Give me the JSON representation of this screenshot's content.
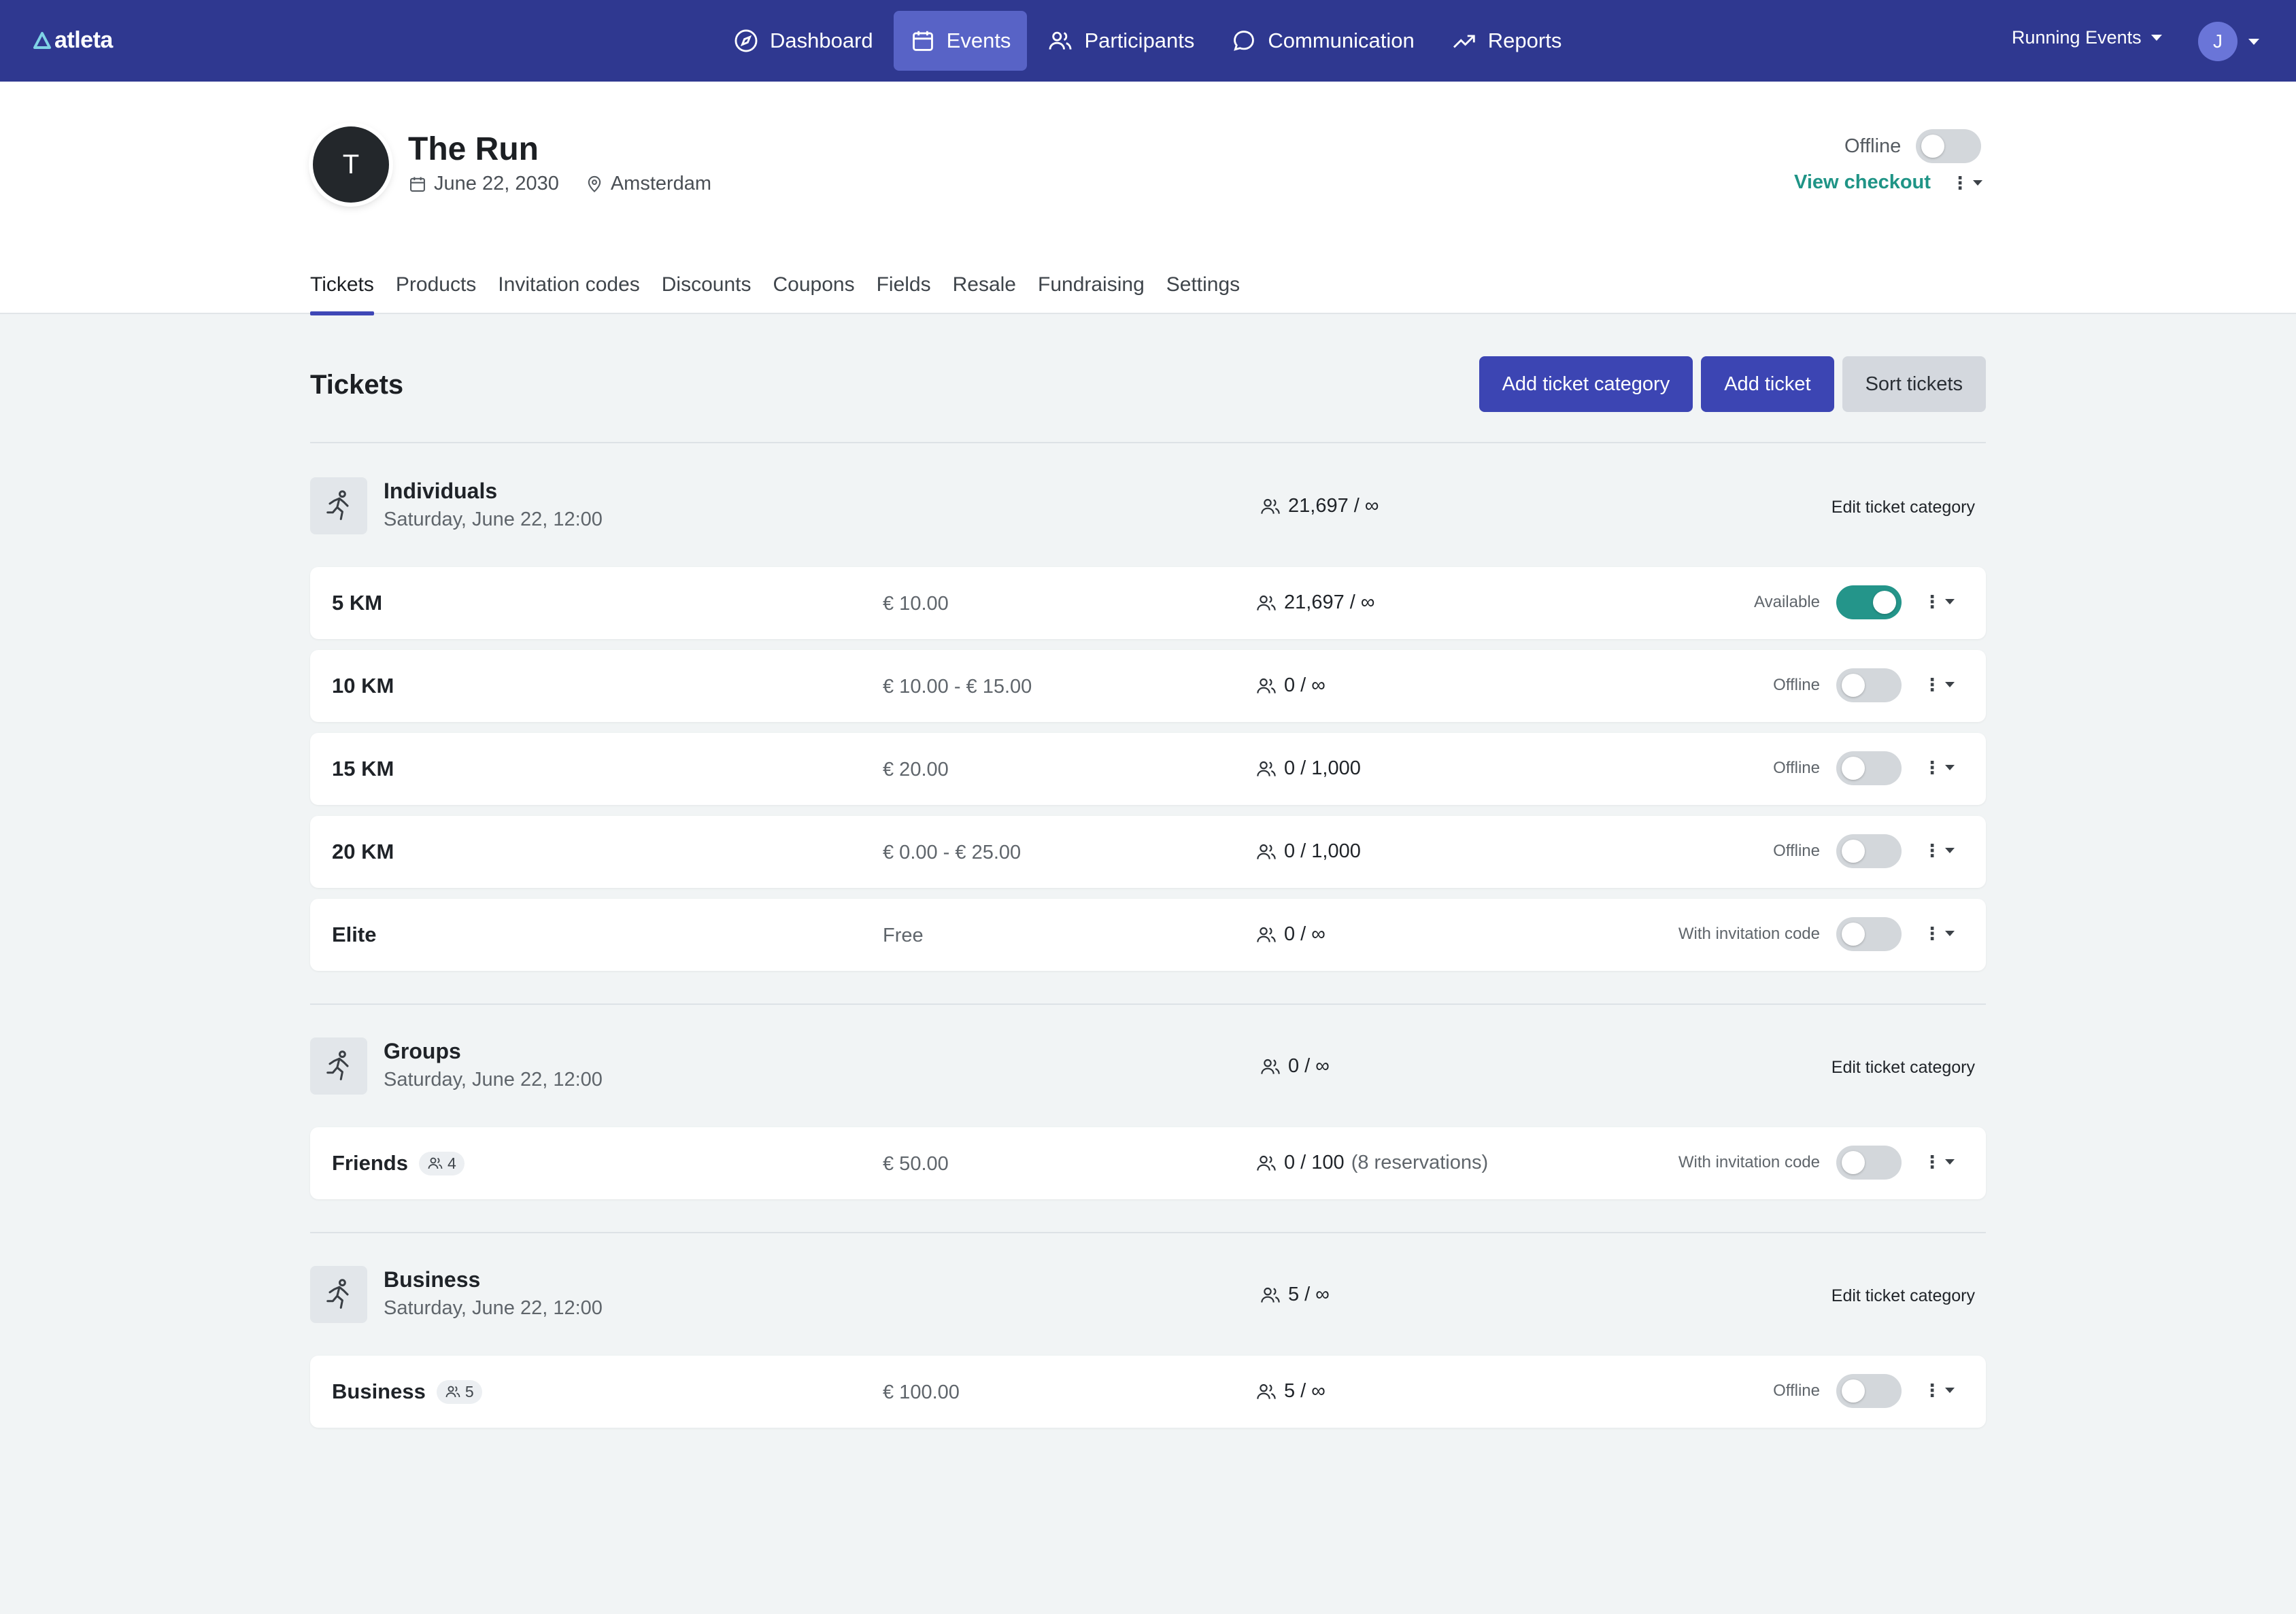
{
  "brand": {
    "name": "atleta"
  },
  "nav": {
    "items": [
      {
        "label": "Dashboard",
        "icon": "compass-icon"
      },
      {
        "label": "Events",
        "icon": "calendar-icon"
      },
      {
        "label": "Participants",
        "icon": "users-icon"
      },
      {
        "label": "Communication",
        "icon": "chat-icon"
      },
      {
        "label": "Reports",
        "icon": "trend-icon"
      }
    ],
    "active": "Events",
    "org": "Running Events",
    "user_initial": "J"
  },
  "event": {
    "initial": "T",
    "title": "The Run",
    "date": "June 22, 2030",
    "location": "Amsterdam",
    "status": "Offline",
    "view_checkout": "View checkout"
  },
  "tabs": [
    "Tickets",
    "Products",
    "Invitation codes",
    "Discounts",
    "Coupons",
    "Fields",
    "Resale",
    "Fundraising",
    "Settings"
  ],
  "tickets_page": {
    "title": "Tickets",
    "add_category": "Add ticket category",
    "add_ticket": "Add ticket",
    "sort_tickets": "Sort tickets",
    "edit_category": "Edit ticket category"
  },
  "categories": [
    {
      "name": "Individuals",
      "date": "Saturday, June 22, 12:00",
      "capacity": "21,697 / ∞",
      "tickets": [
        {
          "name": "5 KM",
          "price": "€ 10.00",
          "capacity": "21,697 / ∞",
          "status": "Available",
          "on": true
        },
        {
          "name": "10 KM",
          "price": "€ 10.00 - € 15.00",
          "capacity": "0 / ∞",
          "status": "Offline",
          "on": false
        },
        {
          "name": "15 KM",
          "price": "€ 20.00",
          "capacity": "0 / 1,000",
          "status": "Offline",
          "on": false
        },
        {
          "name": "20 KM",
          "price": "€ 0.00 - € 25.00",
          "capacity": "0 / 1,000",
          "status": "Offline",
          "on": false
        },
        {
          "name": "Elite",
          "price": "Free",
          "capacity": "0 / ∞",
          "status": "With invitation code",
          "on": false
        }
      ]
    },
    {
      "name": "Groups",
      "date": "Saturday, June 22, 12:00",
      "capacity": "0 / ∞",
      "tickets": [
        {
          "name": "Friends",
          "group_size": "4",
          "price": "€ 50.00",
          "capacity": "0 / 100",
          "extra": "(8 reservations)",
          "status": "With invitation code",
          "on": false
        }
      ]
    },
    {
      "name": "Business",
      "date": "Saturday, June 22, 12:00",
      "capacity": "5 / ∞",
      "tickets": [
        {
          "name": "Business",
          "group_size": "5",
          "price": "€ 100.00",
          "capacity": "5 / ∞",
          "status": "Offline",
          "on": false
        }
      ]
    }
  ],
  "colors": {
    "nav_bg": "#2f3890",
    "nav_active": "#5863c6",
    "primary_button": "#3c45b3",
    "toggle_on": "#24958a",
    "link": "#1f9486"
  }
}
